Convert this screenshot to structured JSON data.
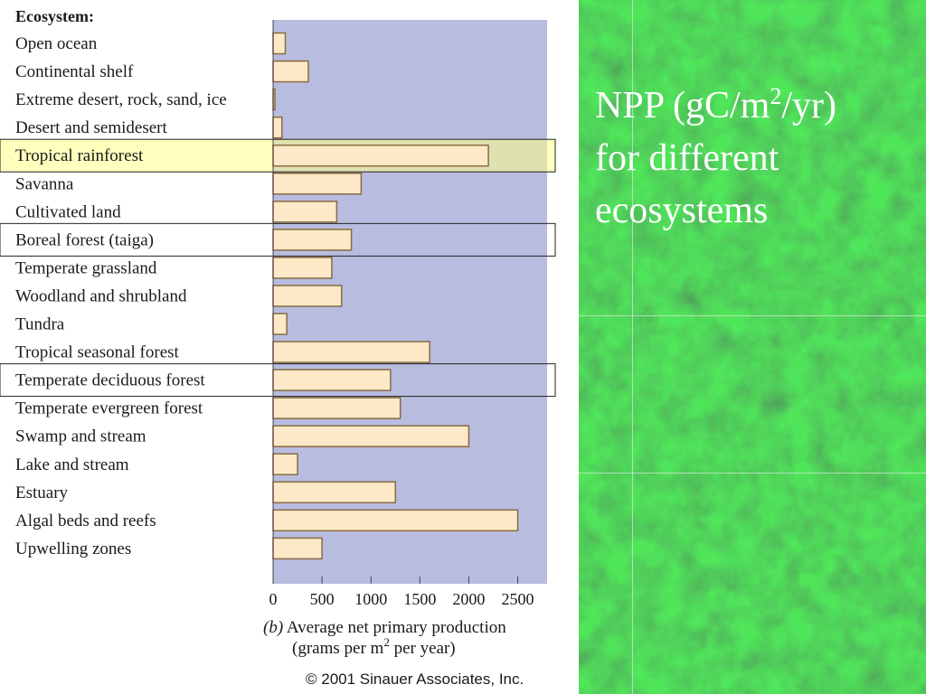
{
  "chart_data": {
    "type": "bar",
    "orientation": "horizontal",
    "header": "Ecosystem:",
    "categories": [
      "Open ocean",
      "Continental shelf",
      "Extreme desert, rock, sand, ice",
      "Desert and semidesert",
      "Tropical rainforest",
      "Savanna",
      "Cultivated land",
      "Boreal forest (taiga)",
      "Temperate grassland",
      "Woodland and shrubland",
      "Tundra",
      "Tropical seasonal forest",
      "Temperate deciduous forest",
      "Temperate evergreen forest",
      "Swamp and stream",
      "Lake and stream",
      "Estuary",
      "Algal beds and reefs",
      "Upwelling zones"
    ],
    "values": [
      125,
      360,
      3,
      90,
      2200,
      900,
      650,
      800,
      600,
      700,
      140,
      1600,
      1200,
      1300,
      2000,
      250,
      1250,
      2500,
      500
    ],
    "highlighted_categories": [
      "Tropical rainforest",
      "Boreal forest (taiga)",
      "Temperate deciduous forest"
    ],
    "xlim": [
      0,
      2800
    ],
    "xticks": [
      "0",
      "500",
      "1000",
      "1500",
      "2000",
      "2500"
    ],
    "xlabel_panel": "(b)",
    "xlabel_line1": "Average net primary production",
    "xlabel_line2_pre": "(grams per m",
    "xlabel_line2_sup": "2",
    "xlabel_line2_post": " per year)",
    "grid": false,
    "colors": {
      "plot_bg": "#b8bde0",
      "bar_fill": "#fde9c8",
      "bar_stroke": "#8a6a40",
      "highlight": "#ffff88"
    }
  },
  "copyright": "© 2001 Sinauer Associates, Inc.",
  "slide": {
    "line1_pre": "NPP (gC/m",
    "line1_sup": "2",
    "line1_post": "/yr)",
    "line2": "for different",
    "line3": "ecosystems"
  },
  "background": {
    "texture": "green marble",
    "color": "#1f5a32"
  }
}
